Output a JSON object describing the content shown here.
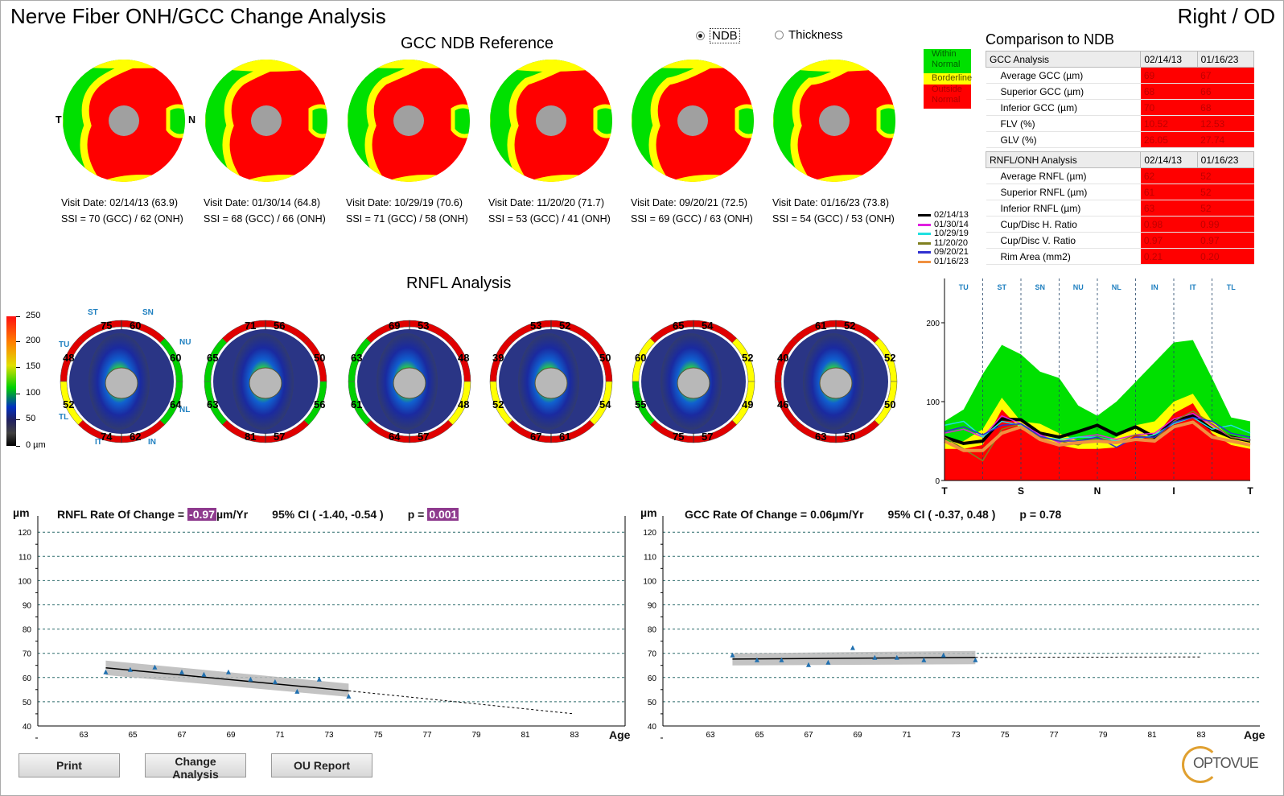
{
  "header": {
    "title": "Nerve Fiber ONH/GCC Change Analysis",
    "eye": "Right / OD"
  },
  "gcc_section": {
    "title": "GCC NDB Reference",
    "radio_ndb": "NDB",
    "radio_thickness": "Thickness",
    "selected": "NDB",
    "orientation_left": "T",
    "orientation_right": "N",
    "visits": [
      {
        "date_line": "Visit Date: 02/14/13 (63.9)",
        "ssi_line": "SSI = 70 (GCC) / 62 (ONH)"
      },
      {
        "date_line": "Visit Date: 01/30/14 (64.8)",
        "ssi_line": "SSI = 68 (GCC) / 66 (ONH)"
      },
      {
        "date_line": "Visit Date: 10/29/19 (70.6)",
        "ssi_line": "SSI = 71 (GCC) / 58 (ONH)"
      },
      {
        "date_line": "Visit Date: 11/20/20 (71.7)",
        "ssi_line": "SSI = 53 (GCC) / 41 (ONH)"
      },
      {
        "date_line": "Visit Date: 09/20/21 (72.5)",
        "ssi_line": "SSI = 69 (GCC) / 63 (ONH)"
      },
      {
        "date_line": "Visit Date: 01/16/23 (73.8)",
        "ssi_line": "SSI = 54 (GCC) / 53 (ONH)"
      }
    ]
  },
  "ndb_legend": {
    "within": "Within Normal",
    "borderline": "Borderline",
    "outside": "Outside Normal",
    "colors": {
      "within": "#00e000",
      "borderline": "#ffff00",
      "outside": "#ff0000"
    }
  },
  "visit_legend": [
    {
      "date": "02/14/13",
      "color": "#000000"
    },
    {
      "date": "01/30/14",
      "color": "#e020e0"
    },
    {
      "date": "10/29/19",
      "color": "#20e0e0"
    },
    {
      "date": "11/20/20",
      "color": "#808020"
    },
    {
      "date": "09/20/21",
      "color": "#3030d0"
    },
    {
      "date": "01/16/23",
      "color": "#f09040"
    }
  ],
  "comparison": {
    "title": "Comparison to NDB",
    "gcc": {
      "header": "GCC Analysis",
      "cols": [
        "02/14/13",
        "01/16/23"
      ],
      "rows": [
        {
          "label": "Average GCC (µm)",
          "v": [
            "69",
            "67"
          ]
        },
        {
          "label": "Superior GCC (µm)",
          "v": [
            "68",
            "66"
          ]
        },
        {
          "label": "Inferior GCC (µm)",
          "v": [
            "70",
            "68"
          ]
        },
        {
          "label": "FLV (%)",
          "v": [
            "10.52",
            "12.53"
          ]
        },
        {
          "label": "GLV (%)",
          "v": [
            "26.05",
            "27.74"
          ]
        }
      ]
    },
    "rnfl": {
      "header": "RNFL/ONH Analysis",
      "cols": [
        "02/14/13",
        "01/16/23"
      ],
      "rows": [
        {
          "label": "Average RNFL (µm)",
          "v": [
            "62",
            "52"
          ]
        },
        {
          "label": "Superior RNFL (µm)",
          "v": [
            "61",
            "52"
          ]
        },
        {
          "label": "Inferior RNFL (µm)",
          "v": [
            "63",
            "52"
          ]
        },
        {
          "label": "Cup/Disc H. Ratio",
          "v": [
            "0.98",
            "0.99"
          ]
        },
        {
          "label": "Cup/Disc V. Ratio",
          "v": [
            "0.97",
            "0.97"
          ]
        },
        {
          "label": "Rim Area (mm2)",
          "v": [
            "0.21",
            "0.20"
          ]
        }
      ]
    }
  },
  "rnfl_section": {
    "title": "RNFL Analysis",
    "colorbar_ticks": [
      "250",
      "200",
      "150",
      "100",
      "50",
      "0 µm"
    ],
    "sector_labels": {
      "ST": "ST",
      "SN": "SN",
      "NU": "NU",
      "NL": "NL",
      "IN": "IN",
      "IT": "IT",
      "TL": "TL",
      "TU": "TU"
    },
    "discs": [
      {
        "ST": [
          "75",
          "red"
        ],
        "SN": [
          "60",
          "red"
        ],
        "NU": [
          "60",
          "green"
        ],
        "NL": [
          "64",
          "green"
        ],
        "IN": [
          "62",
          "red"
        ],
        "IT": [
          "74",
          "red"
        ],
        "TL": [
          "52",
          "yellow"
        ],
        "TU": [
          "48",
          "red"
        ]
      },
      {
        "ST": [
          "71",
          "red"
        ],
        "SN": [
          "56",
          "red"
        ],
        "NU": [
          "50",
          "red"
        ],
        "NL": [
          "56",
          "green"
        ],
        "IN": [
          "57",
          "red"
        ],
        "IT": [
          "81",
          "red"
        ],
        "TL": [
          "63",
          "green"
        ],
        "TU": [
          "65",
          "green"
        ]
      },
      {
        "ST": [
          "69",
          "red"
        ],
        "SN": [
          "53",
          "red"
        ],
        "NU": [
          "48",
          "red"
        ],
        "NL": [
          "48",
          "yellow"
        ],
        "IN": [
          "57",
          "red"
        ],
        "IT": [
          "64",
          "red"
        ],
        "TL": [
          "61",
          "green"
        ],
        "TU": [
          "63",
          "green"
        ]
      },
      {
        "ST": [
          "53",
          "red"
        ],
        "SN": [
          "52",
          "red"
        ],
        "NU": [
          "50",
          "red"
        ],
        "NL": [
          "54",
          "yellow"
        ],
        "IN": [
          "61",
          "red"
        ],
        "IT": [
          "67",
          "red"
        ],
        "TL": [
          "52",
          "yellow"
        ],
        "TU": [
          "39",
          "red"
        ]
      },
      {
        "ST": [
          "65",
          "red"
        ],
        "SN": [
          "54",
          "red"
        ],
        "NU": [
          "52",
          "yellow"
        ],
        "NL": [
          "49",
          "yellow"
        ],
        "IN": [
          "57",
          "red"
        ],
        "IT": [
          "75",
          "red"
        ],
        "TL": [
          "55",
          "green"
        ],
        "TU": [
          "60",
          "yellow"
        ]
      },
      {
        "ST": [
          "61",
          "red"
        ],
        "SN": [
          "52",
          "red"
        ],
        "NU": [
          "52",
          "yellow"
        ],
        "NL": [
          "50",
          "yellow"
        ],
        "IN": [
          "50",
          "red"
        ],
        "IT": [
          "63",
          "red"
        ],
        "TL": [
          "46",
          "red"
        ],
        "TU": [
          "40",
          "red"
        ]
      }
    ]
  },
  "chart_data": [
    {
      "type": "area",
      "sector_labels": [
        "TU",
        "ST",
        "SN",
        "NU",
        "NL",
        "IN",
        "IT",
        "TL"
      ],
      "x_labels": [
        "T",
        "S",
        "N",
        "I",
        "T"
      ],
      "ylim": [
        0,
        250
      ],
      "y_ticks": [
        "0",
        "100",
        "200"
      ],
      "norm_bands": {
        "outside_top": [
          40,
          40,
          45,
          90,
          65,
          55,
          45,
          40,
          40,
          42,
          58,
          55,
          85,
          98,
          60,
          45,
          40
        ],
        "borderline_top": [
          48,
          50,
          65,
          105,
          75,
          72,
          60,
          50,
          48,
          55,
          70,
          75,
          100,
          110,
          75,
          55,
          48
        ],
        "within_top": [
          75,
          90,
          135,
          172,
          160,
          138,
          130,
          95,
          82,
          100,
          125,
          150,
          175,
          178,
          130,
          80,
          75
        ]
      },
      "series": [
        {
          "name": "02/14/13",
          "values": [
            55,
            47,
            50,
            78,
            77,
            60,
            55,
            62,
            70,
            58,
            68,
            55,
            75,
            82,
            65,
            55,
            50
          ]
        },
        {
          "name": "01/30/14",
          "values": [
            60,
            65,
            55,
            82,
            72,
            58,
            48,
            55,
            58,
            52,
            58,
            60,
            78,
            85,
            70,
            55,
            52
          ]
        },
        {
          "name": "10/29/19",
          "values": [
            70,
            75,
            55,
            75,
            70,
            55,
            52,
            55,
            55,
            50,
            52,
            58,
            72,
            80,
            65,
            70,
            60
          ]
        },
        {
          "name": "11/20/20",
          "values": [
            55,
            40,
            25,
            65,
            72,
            55,
            50,
            45,
            55,
            48,
            58,
            52,
            75,
            88,
            72,
            55,
            50
          ]
        },
        {
          "name": "09/20/21",
          "values": [
            62,
            68,
            58,
            70,
            72,
            56,
            50,
            50,
            55,
            42,
            55,
            55,
            74,
            80,
            75,
            60,
            55
          ]
        },
        {
          "name": "01/16/23",
          "values": [
            50,
            38,
            38,
            60,
            68,
            52,
            45,
            48,
            50,
            48,
            52,
            50,
            68,
            74,
            55,
            50,
            45
          ]
        }
      ]
    },
    {
      "type": "scatter",
      "title": "RNFL Rate Of Change",
      "rate_prefix": "RNFL Rate Of Change =",
      "rate": "-0.97",
      "rate_unit": "µm/Yr",
      "ci": "95% CI ( -1.40, -0.54 )",
      "p_prefix": "p =",
      "p": "0.001",
      "ylabel": "µm",
      "xlabel": "Age",
      "xlim": [
        61,
        85
      ],
      "ylim": [
        40,
        120
      ],
      "x_ticks": [
        "63",
        "65",
        "67",
        "69",
        "71",
        "73",
        "75",
        "77",
        "79",
        "81",
        "83"
      ],
      "y_ticks": [
        "40",
        "50",
        "60",
        "70",
        "80",
        "90",
        "100",
        "110",
        "120"
      ],
      "x": [
        63.9,
        64.9,
        65.9,
        67.0,
        67.9,
        68.9,
        69.8,
        70.8,
        71.7,
        72.6,
        73.8
      ],
      "y": [
        62,
        63,
        64,
        62,
        61,
        62,
        59,
        58,
        54,
        59,
        52
      ],
      "trend": {
        "x": [
          63.9,
          73.8
        ],
        "y": [
          64,
          54.5
        ]
      },
      "projection": {
        "x": [
          73.8,
          83
        ],
        "y": [
          54.5,
          45
        ]
      },
      "ci_band": {
        "upper": [
          67,
          57.5
        ],
        "lower": [
          61,
          52
        ]
      }
    },
    {
      "type": "scatter",
      "title": "GCC Rate Of Change",
      "rate_prefix": "GCC Rate Of Change =",
      "rate": "0.06",
      "rate_unit": "µm/Yr",
      "ci": "95% CI ( -0.37, 0.48 )",
      "p_prefix": "p =",
      "p": "0.78",
      "ylabel": "µm",
      "xlabel": "Age",
      "xlim": [
        61,
        85
      ],
      "ylim": [
        40,
        120
      ],
      "x_ticks": [
        "63",
        "65",
        "67",
        "69",
        "71",
        "73",
        "75",
        "77",
        "79",
        "81",
        "83"
      ],
      "y_ticks": [
        "40",
        "50",
        "60",
        "70",
        "80",
        "90",
        "100",
        "110",
        "120"
      ],
      "x": [
        63.9,
        64.9,
        65.9,
        67.0,
        67.8,
        68.8,
        69.7,
        70.6,
        71.7,
        72.5,
        73.8
      ],
      "y": [
        69,
        67,
        67,
        65,
        66,
        72,
        68,
        68,
        67,
        69,
        67
      ],
      "trend": {
        "x": [
          63.9,
          73.8
        ],
        "y": [
          67.6,
          68.3
        ]
      },
      "projection": {
        "x": [
          73.8,
          83
        ],
        "y": [
          68.3,
          68.5
        ]
      },
      "ci_band": {
        "upper": [
          70,
          71
        ],
        "lower": [
          65,
          65.5
        ]
      }
    }
  ],
  "buttons": {
    "print": "Print",
    "change": "Change Analysis",
    "ou": "OU Report"
  },
  "logo": "OPTOVUE"
}
